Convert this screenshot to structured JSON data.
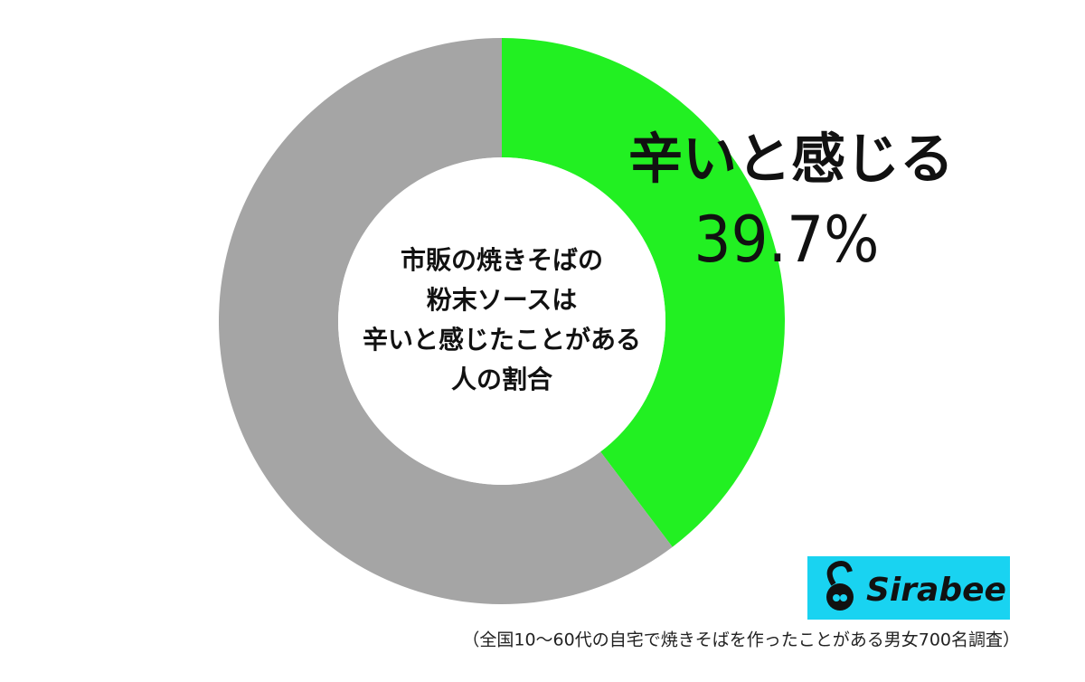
{
  "chart_data": {
    "type": "donut",
    "categories": [
      "辛いと感じる",
      null
    ],
    "values": [
      39.7,
      60.3
    ],
    "value_labels": [
      "39.7%",
      null
    ],
    "colors": [
      "#22f022",
      "#a5a5a5"
    ],
    "center_label": [
      "市販の焼きそばの",
      "粉末ソースは",
      "辛いと感じたことがある",
      "人の割合"
    ],
    "note": "（全国10〜60代の自宅で焼きそばを作ったことがある男女700名調査）",
    "logo": "Sirabee"
  }
}
